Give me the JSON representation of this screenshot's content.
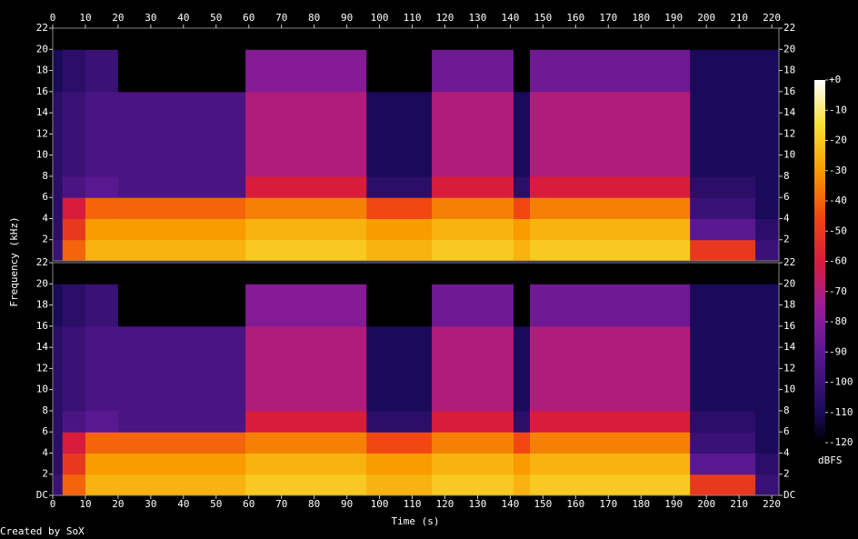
{
  "chart_data": {
    "type": "spectrogram",
    "x_label": "Time (s)",
    "y_label": "Frequency (kHz)",
    "colorbar_label": "dBFS",
    "footer": "Created by SoX",
    "xlim": [
      0,
      222.2
    ],
    "xticks": [
      0,
      10,
      20,
      30,
      40,
      50,
      60,
      70,
      80,
      90,
      100,
      110,
      120,
      130,
      140,
      150,
      160,
      170,
      180,
      190,
      200,
      210,
      220
    ],
    "time_edges": [
      0,
      3,
      10,
      20,
      59,
      96,
      116,
      141,
      146,
      195,
      215,
      222.2
    ],
    "freq_edges": [
      0,
      2,
      4,
      6,
      8,
      16,
      20,
      22
    ],
    "clim": [
      -120,
      0
    ],
    "cticks": [
      {
        "value": 0,
        "label": "+0"
      },
      -10,
      -20,
      -30,
      -40,
      -50,
      -60,
      -70,
      -80,
      -90,
      -100,
      -110,
      -120
    ],
    "colorscale": [
      [
        -120,
        "#000000"
      ],
      [
        -110,
        "#1a0a5a"
      ],
      [
        -90,
        "#5a1890"
      ],
      [
        -75,
        "#9a1c98"
      ],
      [
        -60,
        "#d81c3c"
      ],
      [
        -45,
        "#f04810"
      ],
      [
        -30,
        "#f89c00"
      ],
      [
        -15,
        "#f8e030"
      ],
      [
        0,
        "#ffffff"
      ]
    ],
    "panels": [
      {
        "ylim": [
          0,
          22
        ],
        "yticks": [
          2,
          4,
          6,
          8,
          10,
          12,
          14,
          16,
          18,
          20,
          22
        ],
        "z": [
          [
            -100,
            -105,
            -105,
            -105,
            -105,
            -110,
            -120
          ],
          [
            -40,
            -50,
            -60,
            -95,
            -100,
            -105,
            -120
          ],
          [
            -25,
            -30,
            -40,
            -90,
            -95,
            -100,
            -120
          ],
          [
            -25,
            -30,
            -40,
            -95,
            -95,
            -120,
            -120
          ],
          [
            -20,
            -25,
            -35,
            -60,
            -70,
            -80,
            -120
          ],
          [
            -25,
            -30,
            -45,
            -105,
            -110,
            -120,
            -120
          ],
          [
            -20,
            -25,
            -35,
            -60,
            -70,
            -85,
            -120
          ],
          [
            -25,
            -30,
            -45,
            -105,
            -110,
            -120,
            -120
          ],
          [
            -20,
            -25,
            -35,
            -60,
            -70,
            -85,
            -120
          ],
          [
            -50,
            -90,
            -100,
            -105,
            -110,
            -110,
            -120
          ],
          [
            -100,
            -105,
            -110,
            -110,
            -110,
            -110,
            -120
          ]
        ]
      },
      {
        "ylim": [
          0,
          22
        ],
        "yticks": [
          {
            "value": 0,
            "label": "DC"
          },
          2,
          4,
          6,
          8,
          10,
          12,
          14,
          16,
          18,
          20,
          22
        ],
        "z": [
          [
            -100,
            -105,
            -105,
            -105,
            -105,
            -110,
            -120
          ],
          [
            -40,
            -50,
            -60,
            -95,
            -100,
            -105,
            -120
          ],
          [
            -25,
            -30,
            -40,
            -90,
            -95,
            -100,
            -120
          ],
          [
            -25,
            -30,
            -40,
            -95,
            -95,
            -120,
            -120
          ],
          [
            -20,
            -25,
            -35,
            -60,
            -70,
            -80,
            -120
          ],
          [
            -25,
            -30,
            -45,
            -105,
            -110,
            -120,
            -120
          ],
          [
            -20,
            -25,
            -35,
            -60,
            -70,
            -85,
            -120
          ],
          [
            -25,
            -30,
            -45,
            -105,
            -110,
            -120,
            -120
          ],
          [
            -20,
            -25,
            -35,
            -60,
            -70,
            -85,
            -120
          ],
          [
            -50,
            -90,
            -100,
            -105,
            -110,
            -110,
            -120
          ],
          [
            -100,
            -105,
            -110,
            -110,
            -110,
            -110,
            -120
          ]
        ]
      }
    ]
  }
}
